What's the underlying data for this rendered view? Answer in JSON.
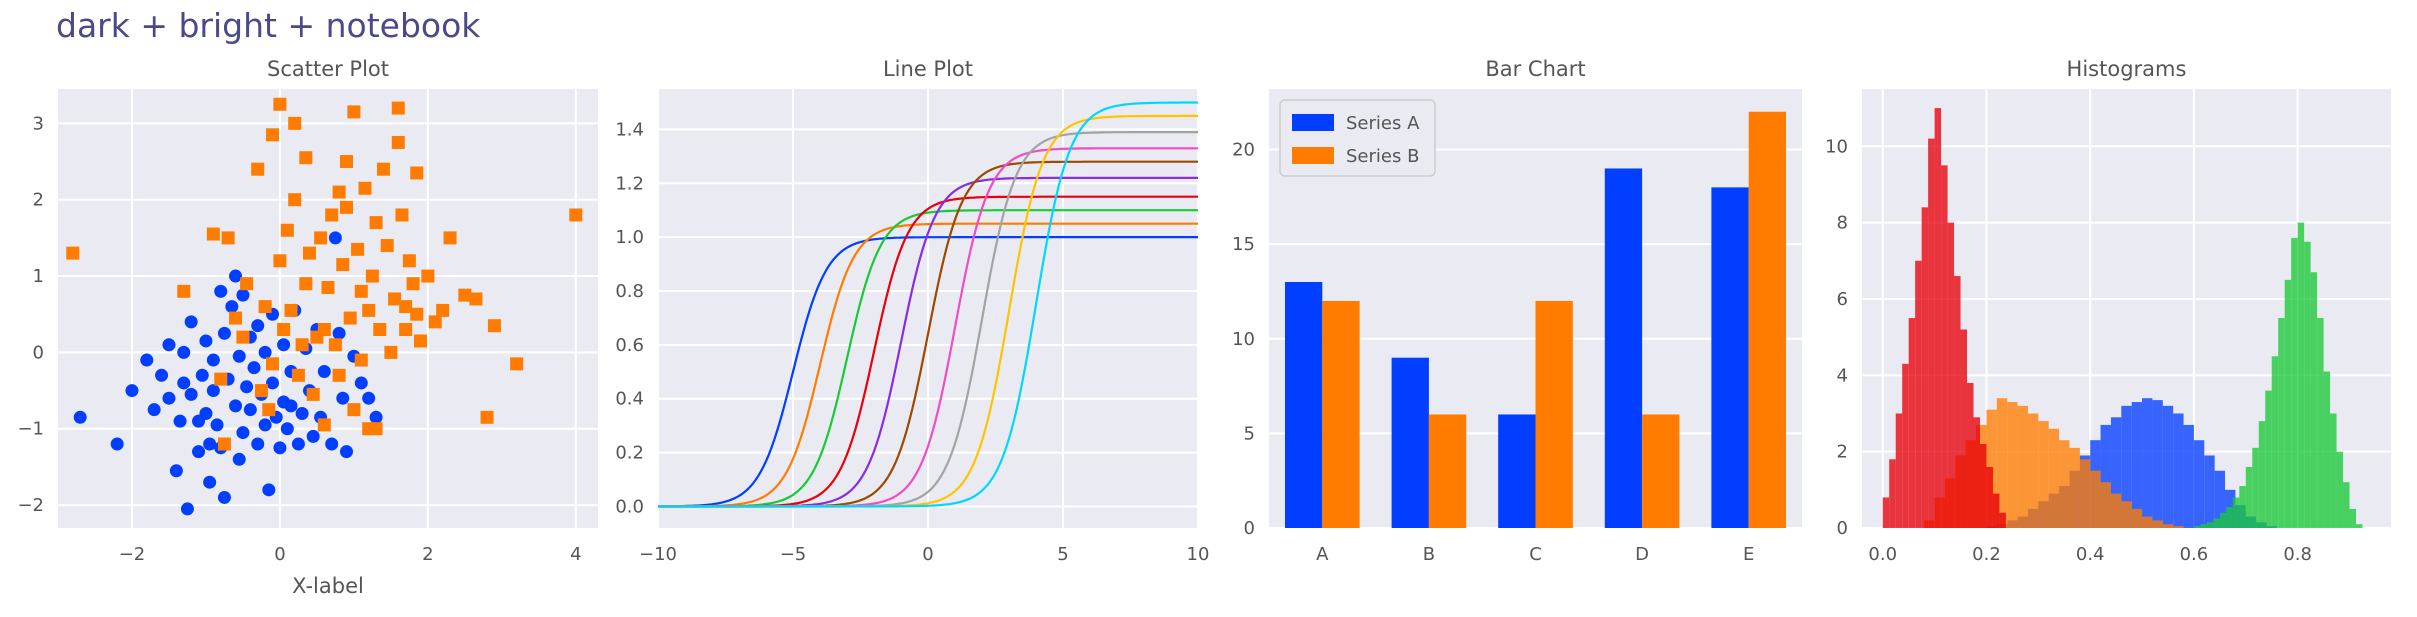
{
  "figure": {
    "suptitle": "dark + bright + notebook"
  },
  "style": {
    "axes_bg": "#eaeaf2",
    "grid": "#ffffff",
    "text": "#555555",
    "palette": [
      "#023eff",
      "#ff7c00",
      "#1ac938",
      "#e8000b",
      "#8b2be2",
      "#9f4800",
      "#f14cc1",
      "#a3a3a3",
      "#ffc400",
      "#00d7ff"
    ]
  },
  "chart_data": [
    {
      "type": "scatter",
      "title": "Scatter Plot",
      "xlabel": "X-label",
      "ylabel": "",
      "xlim": [
        -3.0,
        4.3
      ],
      "ylim": [
        -2.3,
        3.45
      ],
      "xticks": [
        -2,
        0,
        2,
        4
      ],
      "yticks": [
        -2,
        -1,
        0,
        1,
        2,
        3
      ],
      "grid": true,
      "series": [
        {
          "marker": "circle",
          "color": "#023eff",
          "points": [
            [
              -2.7,
              -0.85
            ],
            [
              -2.2,
              -1.2
            ],
            [
              -2.0,
              -0.5
            ],
            [
              -1.8,
              -0.1
            ],
            [
              -1.7,
              -0.75
            ],
            [
              -1.6,
              -0.3
            ],
            [
              -1.5,
              -0.6
            ],
            [
              -1.5,
              0.1
            ],
            [
              -1.4,
              -1.55
            ],
            [
              -1.35,
              -0.9
            ],
            [
              -1.3,
              0.0
            ],
            [
              -1.3,
              -0.4
            ],
            [
              -1.25,
              -2.05
            ],
            [
              -1.2,
              -0.55
            ],
            [
              -1.2,
              0.4
            ],
            [
              -1.1,
              -1.3
            ],
            [
              -1.1,
              -0.9
            ],
            [
              -1.05,
              -0.3
            ],
            [
              -1.0,
              0.15
            ],
            [
              -1.0,
              -0.8
            ],
            [
              -0.95,
              -1.7
            ],
            [
              -0.9,
              -0.1
            ],
            [
              -0.9,
              -0.5
            ],
            [
              -0.85,
              -0.95
            ],
            [
              -0.8,
              0.8
            ],
            [
              -0.8,
              -1.25
            ],
            [
              -0.75,
              0.25
            ],
            [
              -0.75,
              -1.9
            ],
            [
              -0.7,
              -0.35
            ],
            [
              -0.65,
              0.6
            ],
            [
              -0.6,
              1.0
            ],
            [
              -0.6,
              -0.7
            ],
            [
              -0.55,
              -0.05
            ],
            [
              -0.5,
              0.75
            ],
            [
              -0.5,
              -1.05
            ],
            [
              -0.45,
              -0.45
            ],
            [
              -0.4,
              0.2
            ],
            [
              -0.4,
              -0.75
            ],
            [
              -0.35,
              -0.2
            ],
            [
              -0.3,
              -1.2
            ],
            [
              -0.3,
              0.35
            ],
            [
              -0.25,
              -0.55
            ],
            [
              -0.2,
              0.0
            ],
            [
              -0.2,
              -0.95
            ],
            [
              -0.15,
              -1.8
            ],
            [
              -0.1,
              0.5
            ],
            [
              -0.1,
              -0.4
            ],
            [
              -0.05,
              -0.85
            ],
            [
              0.0,
              -1.25
            ],
            [
              0.05,
              0.1
            ],
            [
              0.05,
              -0.65
            ],
            [
              0.1,
              -1.0
            ],
            [
              0.15,
              -0.25
            ],
            [
              0.2,
              0.55
            ],
            [
              0.25,
              -1.2
            ],
            [
              0.3,
              -0.8
            ],
            [
              0.35,
              0.05
            ],
            [
              0.4,
              -0.5
            ],
            [
              0.45,
              -1.1
            ],
            [
              0.5,
              0.3
            ],
            [
              0.55,
              -0.85
            ],
            [
              0.6,
              -0.25
            ],
            [
              0.7,
              -1.2
            ],
            [
              0.75,
              1.5
            ],
            [
              0.8,
              0.25
            ],
            [
              0.85,
              -0.6
            ],
            [
              0.9,
              -1.3
            ],
            [
              1.0,
              -0.05
            ],
            [
              1.1,
              -0.4
            ],
            [
              1.2,
              -0.6
            ],
            [
              1.3,
              -0.85
            ],
            [
              -0.95,
              -1.2
            ],
            [
              0.15,
              -0.7
            ],
            [
              -0.55,
              -1.4
            ]
          ]
        },
        {
          "marker": "square",
          "color": "#ff7c00",
          "points": [
            [
              -2.8,
              1.3
            ],
            [
              -1.3,
              0.8
            ],
            [
              -0.9,
              1.55
            ],
            [
              -0.8,
              -0.35
            ],
            [
              -0.75,
              -1.2
            ],
            [
              -0.7,
              1.5
            ],
            [
              -0.6,
              0.45
            ],
            [
              -0.5,
              0.2
            ],
            [
              -0.45,
              0.9
            ],
            [
              -0.3,
              2.4
            ],
            [
              -0.2,
              0.6
            ],
            [
              -0.15,
              -0.75
            ],
            [
              -0.1,
              -0.15
            ],
            [
              -0.1,
              2.85
            ],
            [
              0.0,
              1.2
            ],
            [
              0.0,
              3.25
            ],
            [
              0.05,
              0.3
            ],
            [
              0.1,
              1.6
            ],
            [
              0.15,
              0.55
            ],
            [
              0.2,
              2.0
            ],
            [
              0.2,
              3.0
            ],
            [
              0.25,
              -0.3
            ],
            [
              0.3,
              0.1
            ],
            [
              0.35,
              0.9
            ],
            [
              0.35,
              2.55
            ],
            [
              0.4,
              1.3
            ],
            [
              0.45,
              -0.55
            ],
            [
              0.5,
              0.2
            ],
            [
              0.55,
              1.5
            ],
            [
              0.6,
              -0.95
            ],
            [
              0.65,
              0.85
            ],
            [
              0.7,
              1.8
            ],
            [
              0.75,
              0.1
            ],
            [
              0.8,
              2.1
            ],
            [
              0.8,
              -0.3
            ],
            [
              0.85,
              1.15
            ],
            [
              0.9,
              1.9
            ],
            [
              0.95,
              0.45
            ],
            [
              1.0,
              3.15
            ],
            [
              1.0,
              -0.75
            ],
            [
              1.05,
              1.35
            ],
            [
              1.1,
              0.8
            ],
            [
              1.1,
              -0.1
            ],
            [
              1.15,
              2.15
            ],
            [
              1.2,
              0.55
            ],
            [
              1.25,
              1.0
            ],
            [
              1.3,
              -1.0
            ],
            [
              1.35,
              0.3
            ],
            [
              1.4,
              2.4
            ],
            [
              1.45,
              1.4
            ],
            [
              1.5,
              0.0
            ],
            [
              1.55,
              0.7
            ],
            [
              1.6,
              3.2
            ],
            [
              1.6,
              2.75
            ],
            [
              1.65,
              1.8
            ],
            [
              1.7,
              0.3
            ],
            [
              1.75,
              1.2
            ],
            [
              1.8,
              0.9
            ],
            [
              1.85,
              2.35
            ],
            [
              1.85,
              0.5
            ],
            [
              1.9,
              0.15
            ],
            [
              2.0,
              1.0
            ],
            [
              2.1,
              0.4
            ],
            [
              2.2,
              0.55
            ],
            [
              2.3,
              1.5
            ],
            [
              2.5,
              0.75
            ],
            [
              2.65,
              0.7
            ],
            [
              2.8,
              -0.85
            ],
            [
              2.9,
              0.35
            ],
            [
              3.2,
              -0.15
            ],
            [
              4.0,
              1.8
            ],
            [
              1.3,
              1.7
            ],
            [
              0.6,
              0.3
            ],
            [
              1.7,
              0.6
            ],
            [
              -0.25,
              -0.5
            ],
            [
              1.2,
              -1.0
            ],
            [
              0.9,
              2.5
            ]
          ]
        }
      ]
    },
    {
      "type": "line",
      "title": "Line Plot",
      "xlabel": "",
      "ylabel": "",
      "xlim": [
        -10,
        10
      ],
      "ylim": [
        -0.08,
        1.55
      ],
      "xticks": [
        -10,
        -5,
        0,
        5,
        10
      ],
      "yticks": [
        0.0,
        0.2,
        0.4,
        0.6,
        0.8,
        1.0,
        1.2,
        1.4
      ],
      "grid": true,
      "curve": "sigmoid",
      "series": [
        {
          "center": -5,
          "amplitude": 1.0,
          "color": "#023eff"
        },
        {
          "center": -4,
          "amplitude": 1.05,
          "color": "#ff7c00"
        },
        {
          "center": -3,
          "amplitude": 1.1,
          "color": "#1ac938"
        },
        {
          "center": -2,
          "amplitude": 1.15,
          "color": "#e8000b"
        },
        {
          "center": -1,
          "amplitude": 1.22,
          "color": "#8b2be2"
        },
        {
          "center": 0,
          "amplitude": 1.28,
          "color": "#9f4800"
        },
        {
          "center": 1,
          "amplitude": 1.33,
          "color": "#f14cc1"
        },
        {
          "center": 2,
          "amplitude": 1.39,
          "color": "#a3a3a3"
        },
        {
          "center": 3,
          "amplitude": 1.45,
          "color": "#ffc400"
        },
        {
          "center": 4,
          "amplitude": 1.5,
          "color": "#00d7ff"
        }
      ]
    },
    {
      "type": "bar",
      "title": "Bar Chart",
      "xlabel": "",
      "ylabel": "",
      "categories": [
        "A",
        "B",
        "C",
        "D",
        "E"
      ],
      "ylim": [
        0,
        23.2
      ],
      "yticks": [
        0,
        5,
        10,
        15,
        20
      ],
      "grid": true,
      "legend": "top-left",
      "series": [
        {
          "name": "Series A",
          "values": [
            13,
            9,
            6,
            19,
            18
          ],
          "color": "#023eff"
        },
        {
          "name": "Series B",
          "values": [
            12,
            6,
            12,
            6,
            22
          ],
          "color": "#ff7c00"
        }
      ]
    },
    {
      "type": "bar",
      "title": "Histograms",
      "xlabel": "",
      "ylabel": "",
      "xlim": [
        -0.04,
        0.98
      ],
      "ylim": [
        0,
        11.5
      ],
      "xticks": [
        0.0,
        0.2,
        0.4,
        0.6,
        0.8
      ],
      "yticks": [
        0,
        2,
        4,
        6,
        8,
        10
      ],
      "grid": true,
      "series": [
        {
          "color": "#023eff",
          "binwidth": 0.02,
          "starts": [
            0.2,
            0.22,
            0.24,
            0.26,
            0.28,
            0.3,
            0.32,
            0.34,
            0.36,
            0.38,
            0.4,
            0.42,
            0.44,
            0.46,
            0.48,
            0.5,
            0.52,
            0.54,
            0.56,
            0.58,
            0.6,
            0.62,
            0.64,
            0.66,
            0.68,
            0.7,
            0.72,
            0.74
          ],
          "values": [
            0.05,
            0.1,
            0.2,
            0.3,
            0.5,
            0.7,
            0.9,
            1.1,
            1.5,
            1.9,
            2.3,
            2.7,
            2.9,
            3.2,
            3.3,
            3.4,
            3.35,
            3.2,
            3.0,
            2.7,
            2.3,
            1.9,
            1.5,
            1.0,
            0.6,
            0.3,
            0.15,
            0.05
          ]
        },
        {
          "color": "#ff7c00",
          "binwidth": 0.02,
          "starts": [
            0.08,
            0.1,
            0.12,
            0.14,
            0.16,
            0.18,
            0.2,
            0.22,
            0.24,
            0.26,
            0.28,
            0.3,
            0.32,
            0.34,
            0.36,
            0.38,
            0.4,
            0.42,
            0.44,
            0.46,
            0.48,
            0.5,
            0.52,
            0.54,
            0.56
          ],
          "values": [
            0.2,
            0.8,
            1.3,
            1.9,
            2.3,
            2.7,
            3.1,
            3.4,
            3.3,
            3.2,
            3.0,
            2.8,
            2.6,
            2.3,
            2.1,
            1.8,
            1.5,
            1.2,
            0.9,
            0.7,
            0.5,
            0.3,
            0.2,
            0.1,
            0.05
          ]
        },
        {
          "color": "#1ac938",
          "binwidth": 0.0125,
          "starts": [
            0.6,
            0.6125,
            0.625,
            0.6375,
            0.65,
            0.6625,
            0.675,
            0.6875,
            0.7,
            0.7125,
            0.725,
            0.7375,
            0.75,
            0.7625,
            0.775,
            0.7875,
            0.8,
            0.8125,
            0.825,
            0.8375,
            0.85,
            0.8625,
            0.875,
            0.8875,
            0.9,
            0.9125
          ],
          "values": [
            0.05,
            0.1,
            0.15,
            0.25,
            0.4,
            0.55,
            0.8,
            1.1,
            1.6,
            2.1,
            2.8,
            3.6,
            4.5,
            5.5,
            6.5,
            7.6,
            8.0,
            7.5,
            6.7,
            5.5,
            4.1,
            3.0,
            2.0,
            1.2,
            0.5,
            0.1
          ]
        },
        {
          "color": "#e8000b",
          "binwidth": 0.0125,
          "starts": [
            0.0,
            0.0125,
            0.025,
            0.0375,
            0.05,
            0.0625,
            0.075,
            0.0875,
            0.1,
            0.1125,
            0.125,
            0.1375,
            0.15,
            0.1625,
            0.175,
            0.1875,
            0.2,
            0.2125,
            0.225
          ],
          "values": [
            0.8,
            1.8,
            3.0,
            4.3,
            5.5,
            7.0,
            8.4,
            10.2,
            11.0,
            9.5,
            8.0,
            6.6,
            5.2,
            3.8,
            2.9,
            2.2,
            1.6,
            0.9,
            0.4
          ]
        }
      ]
    }
  ]
}
